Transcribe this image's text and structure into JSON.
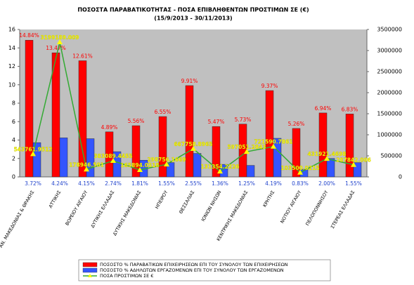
{
  "chart_data": {
    "type": "bar-line",
    "title": "ΠΟΣΟΣΤΑ ΠΑΡΑΒΑΤΙΚΟΤΗΤΑΣ - ΠΟΣΑ ΕΠΙΒΛΗΘΕΝΤΩΝ ΠΡΟΣΤΙΜΩΝ ΣΕ (€)",
    "subtitle": "(15/9/2013 - 30/11/2013)",
    "categories": [
      "ΑΝ. ΜΑΚΕΔΟΝΙΑΣ & ΘΡΑΚΗΣ",
      "ΑΤΤΙΚΗΣ",
      "ΒΟΡΕΙΟΥ ΑΙΓΑΙΟΥ",
      "ΔΥΤΙΚΗΣ ΕΛΛΑΔΑΣ",
      "ΔΥΤΙΚΗΣ ΜΑΚΕΔΟΝΙΑΣ",
      "ΗΠΕΙΡΟΥ",
      "ΘΕΣΣΑΛΙΑΣ",
      "ΙΟΝΙΩΝ ΝΗΣΩΝ",
      "ΚΕΝΤΡΙΚΗΣ ΜΑΚΕΔΟΝΙΑΣ",
      "ΚΡΗΤΗΣ",
      "ΝΟΤΙΟΥ ΑΙΓΑΙΟΥ",
      "ΠΕΛΟΠΟΝΝΗΣΟΥ",
      "ΣΤΕΡΕΑΣ ΕΛΛΑΔΑΣ"
    ],
    "series": [
      {
        "name": "ΠΟΣΟΣΤΟ % ΠΑΡΑΒΑΤΙΚΩΝ ΕΠΙΧΕΙΡΗΣΕΩΝ ΕΠΙ ΤΟΥ ΣΥΝΟΛΟΥ ΤΩΝ ΕΠΙΧΕΙΡΗΣΕΩΝ",
        "color": "#ff0000",
        "kind": "bar",
        "values": [
          14.84,
          13.47,
          12.61,
          4.89,
          5.56,
          6.55,
          9.91,
          5.47,
          5.73,
          9.37,
          5.26,
          6.94,
          6.83
        ],
        "value_labels": [
          "14.84%",
          "13.47%",
          "12.61%",
          "4.89%",
          "5.56%",
          "6.55%",
          "9.91%",
          "5.47%",
          "5.73%",
          "9.37%",
          "5.26%",
          "6.94%",
          "6.83%"
        ]
      },
      {
        "name": "ΠΟΣΟΣΤΟ % ΑΔΗΛΩΤΩΝ ΕΡΓΑΖΟΜΕΝΩΝ ΕΠΙ ΤΟΥ ΣΥΝΟΛΟΥ ΤΩΝ ΕΡΓΑΖΟΜΕΝΩΝ",
        "color": "#3355ff",
        "kind": "bar",
        "values": [
          3.72,
          4.24,
          4.15,
          2.74,
          1.81,
          1.55,
          2.55,
          1.36,
          1.25,
          4.19,
          0.83,
          2.0,
          1.55
        ],
        "value_labels": [
          "3.72%",
          "4.24%",
          "4.15%",
          "2.74%",
          "1.81%",
          "1.55%",
          "2.55%",
          "1.36%",
          "1.25%",
          "4.19%",
          "0.83%",
          "2.00%",
          "1.55%"
        ]
      },
      {
        "name": "ΠΟΣΑ ΠΡΟΣΤΙΜΩΝ ΣΕ €",
        "color": "#33aa33",
        "kind": "line",
        "axis": "y2",
        "values": [
          543761.9512,
          3199189.009,
          178946.501,
          383089.4455,
          165894.0518,
          298756.1669,
          667758.8965,
          131354.2226,
          597051.2843,
          721590.7861,
          103500.0215,
          431921.4698,
          287842.006
        ]
      }
    ],
    "ylim": [
      0,
      16
    ],
    "yticks": [
      0,
      2,
      4,
      6,
      8,
      10,
      12,
      14,
      16
    ],
    "y2lim": [
      0,
      3500000
    ],
    "y2ticks": [
      0,
      500000,
      1000000,
      1500000,
      2000000,
      2500000,
      3000000,
      3500000
    ],
    "grid": false
  }
}
